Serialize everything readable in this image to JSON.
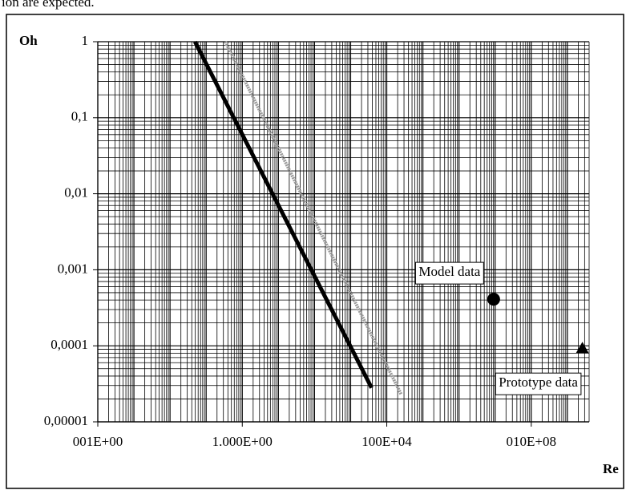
{
  "chart_data": {
    "type": "line",
    "caption": "ion are expected.",
    "x_label": "Re",
    "y_label": "Oh",
    "x_scale": "log",
    "y_scale": "log",
    "grid": true,
    "xlim": [
      0.0001,
      4000000000
    ],
    "ylim": [
      1e-05,
      1
    ],
    "xticks": [
      {
        "value": 0.0001,
        "label": "001E+00"
      },
      {
        "value": 1,
        "label": "1.000E+00"
      },
      {
        "value": 10000,
        "label": "100E+04"
      },
      {
        "value": 100000000,
        "label": "010E+08"
      }
    ],
    "yticks": [
      1,
      {
        "value": 0.1,
        "label": "0,1"
      },
      {
        "value": 0.01,
        "label": "0,01"
      },
      {
        "value": 0.001,
        "label": "0,001"
      },
      {
        "value": 0.0001,
        "label": "0,0001"
      },
      {
        "value": 1e-05,
        "label": "0,00001"
      }
    ],
    "series": [
      {
        "color": "#000000",
        "x": [
          0.049,
          3800
        ],
        "y": [
          1,
          2.8e-05
        ]
      },
      {
        "color": "#9a9a9a",
        "x": [
          0.34,
          25000
        ],
        "y": [
          1,
          2.3e-05
        ]
      }
    ],
    "points": [
      {
        "name": "Model data",
        "marker": "circle",
        "color": "#000000",
        "x": 9100000,
        "y": 0.00041
      },
      {
        "name": "Prototype data",
        "marker": "triangle",
        "color": "#000000",
        "x": 2600000000,
        "y": 9.3e-05
      }
    ]
  }
}
